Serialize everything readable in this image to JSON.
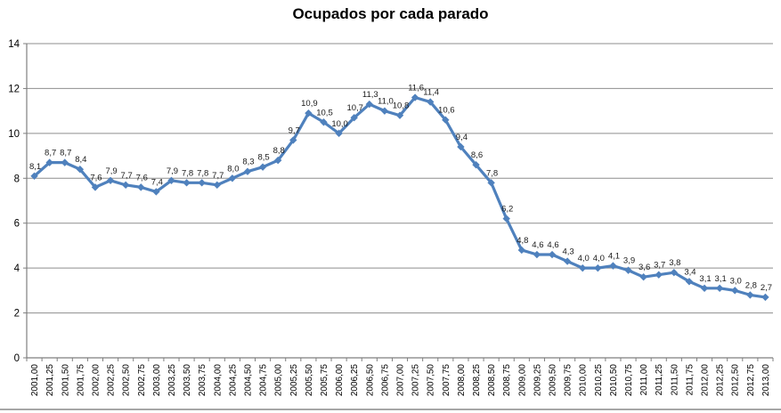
{
  "title": "Ocupados por cada parado",
  "chart_data": {
    "type": "line",
    "title": "Ocupados por cada parado",
    "x": [
      "2001,00",
      "2001,25",
      "2001,50",
      "2001,75",
      "2002,00",
      "2002,25",
      "2002,50",
      "2002,75",
      "2003,00",
      "2003,25",
      "2003,50",
      "2003,75",
      "2004,00",
      "2004,25",
      "2004,50",
      "2004,75",
      "2005,00",
      "2005,25",
      "2005,50",
      "2005,75",
      "2006,00",
      "2006,25",
      "2006,50",
      "2006,75",
      "2007,00",
      "2007,25",
      "2007,50",
      "2007,75",
      "2008,00",
      "2008,25",
      "2008,50",
      "2008,75",
      "2009,00",
      "2009,25",
      "2009,50",
      "2009,75",
      "2010,00",
      "2010,25",
      "2010,50",
      "2010,75",
      "2011,00",
      "2011,25",
      "2011,50",
      "2011,75",
      "2012,00",
      "2012,25",
      "2012,50",
      "2012,75",
      "2013,00"
    ],
    "values": [
      8.1,
      8.7,
      8.7,
      8.4,
      7.6,
      7.9,
      7.7,
      7.6,
      7.4,
      7.9,
      7.8,
      7.8,
      7.7,
      8.0,
      8.3,
      8.5,
      8.8,
      9.7,
      10.9,
      10.5,
      10.0,
      10.7,
      11.3,
      11.0,
      10.8,
      11.6,
      11.4,
      10.6,
      9.4,
      8.6,
      7.8,
      6.2,
      4.8,
      4.6,
      4.6,
      4.3,
      4.0,
      4.0,
      4.1,
      3.9,
      3.6,
      3.7,
      3.8,
      3.4,
      3.1,
      3.1,
      3.0,
      2.8,
      2.7
    ],
    "data_labels": [
      "8,1",
      "8,7",
      "8,7",
      "8,4",
      "7,6",
      "7,9",
      "7,7",
      "7,6",
      "7,4",
      "7,9",
      "7,8",
      "7,8",
      "7,7",
      "8,0",
      "8,3",
      "8,5",
      "8,8",
      "9,7",
      "10,9",
      "10,5",
      "10,0",
      "10,7",
      "11,3",
      "11,0",
      "10,8",
      "11,6",
      "11,4",
      "10,6",
      "9,4",
      "8,6",
      "7,8",
      "6,2",
      "4,8",
      "4,6",
      "4,6",
      "4,3",
      "4,0",
      "4,0",
      "4,1",
      "3,9",
      "3,6",
      "3,7",
      "3,8",
      "3,4",
      "3,1",
      "3,1",
      "3,0",
      "2,8",
      "2,7"
    ],
    "xlabel": "",
    "ylabel": "",
    "ylim": [
      0,
      14
    ],
    "yticks": [
      0,
      2,
      4,
      6,
      8,
      10,
      12,
      14
    ],
    "ytick_labels": [
      "0",
      "2",
      "4",
      "6",
      "8",
      "10",
      "12",
      "14"
    ],
    "grid": true,
    "legend": "none",
    "series_color": "#4F81BD",
    "gridline_color": "#8e8e8e",
    "axis_color": "#7f7f7f",
    "label_color": "#1a1a1a",
    "tick_label_color": "#000000"
  }
}
